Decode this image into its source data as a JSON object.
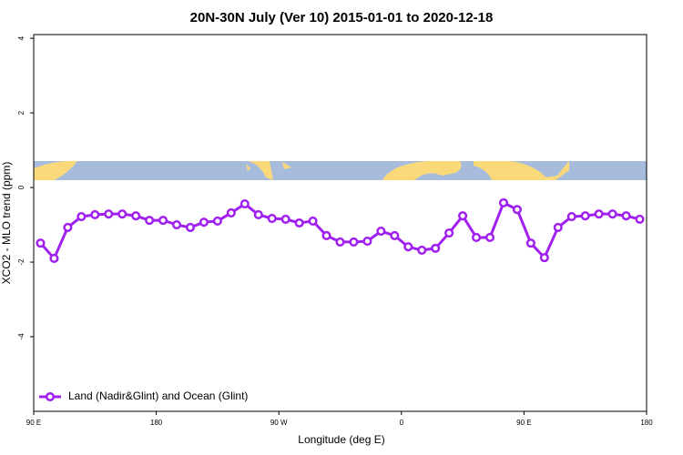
{
  "chart_data": {
    "type": "line",
    "title": "20N-30N July (Ver 10)   2015-01-01 to 2020-12-18",
    "x_label": "Longitude (deg E)",
    "y_label": "XCO2 - MLO trend (ppm)",
    "xlim": [
      90,
      540
    ],
    "xticks": [
      {
        "value": 90,
        "label": "90 E"
      },
      180,
      {
        "value": 270,
        "label": "90 W"
      },
      {
        "value": 360,
        "label": "0"
      },
      {
        "value": 450,
        "label": "90 E"
      },
      {
        "value": 540,
        "label": "180"
      }
    ],
    "ylim": [
      -6,
      4.1
    ],
    "yticks": [
      -4,
      -2,
      0,
      2,
      4
    ],
    "legend": "bottom-left",
    "x": [
      95,
      105,
      115,
      125,
      135,
      145,
      155,
      165,
      175,
      185,
      195,
      205,
      215,
      225,
      235,
      245,
      255,
      265,
      275,
      285,
      295,
      305,
      315,
      325,
      335,
      345,
      355,
      365,
      375,
      385,
      395,
      405,
      415,
      425,
      435,
      445,
      455,
      465,
      475,
      485,
      495,
      505,
      515,
      525,
      535
    ],
    "series": [
      {
        "name": "Land (Nadir&Glint) and Ocean (Glint)",
        "color": "#a020f0",
        "values": [
          -1.49,
          -1.9,
          -1.07,
          -0.78,
          -0.73,
          -0.71,
          -0.71,
          -0.76,
          -0.88,
          -0.88,
          -1.0,
          -1.07,
          -0.93,
          -0.9,
          -0.68,
          -0.44,
          -0.73,
          -0.83,
          -0.85,
          -0.95,
          -0.9,
          -1.29,
          -1.46,
          -1.46,
          -1.44,
          -1.17,
          -1.29,
          -1.59,
          -1.68,
          -1.63,
          -1.22,
          -0.76,
          -1.34,
          -1.34,
          -0.41,
          -0.59,
          -1.49,
          -1.88,
          -1.07,
          -0.78,
          -0.76,
          -0.71,
          -0.71,
          -0.76,
          -0.85
        ]
      }
    ]
  }
}
